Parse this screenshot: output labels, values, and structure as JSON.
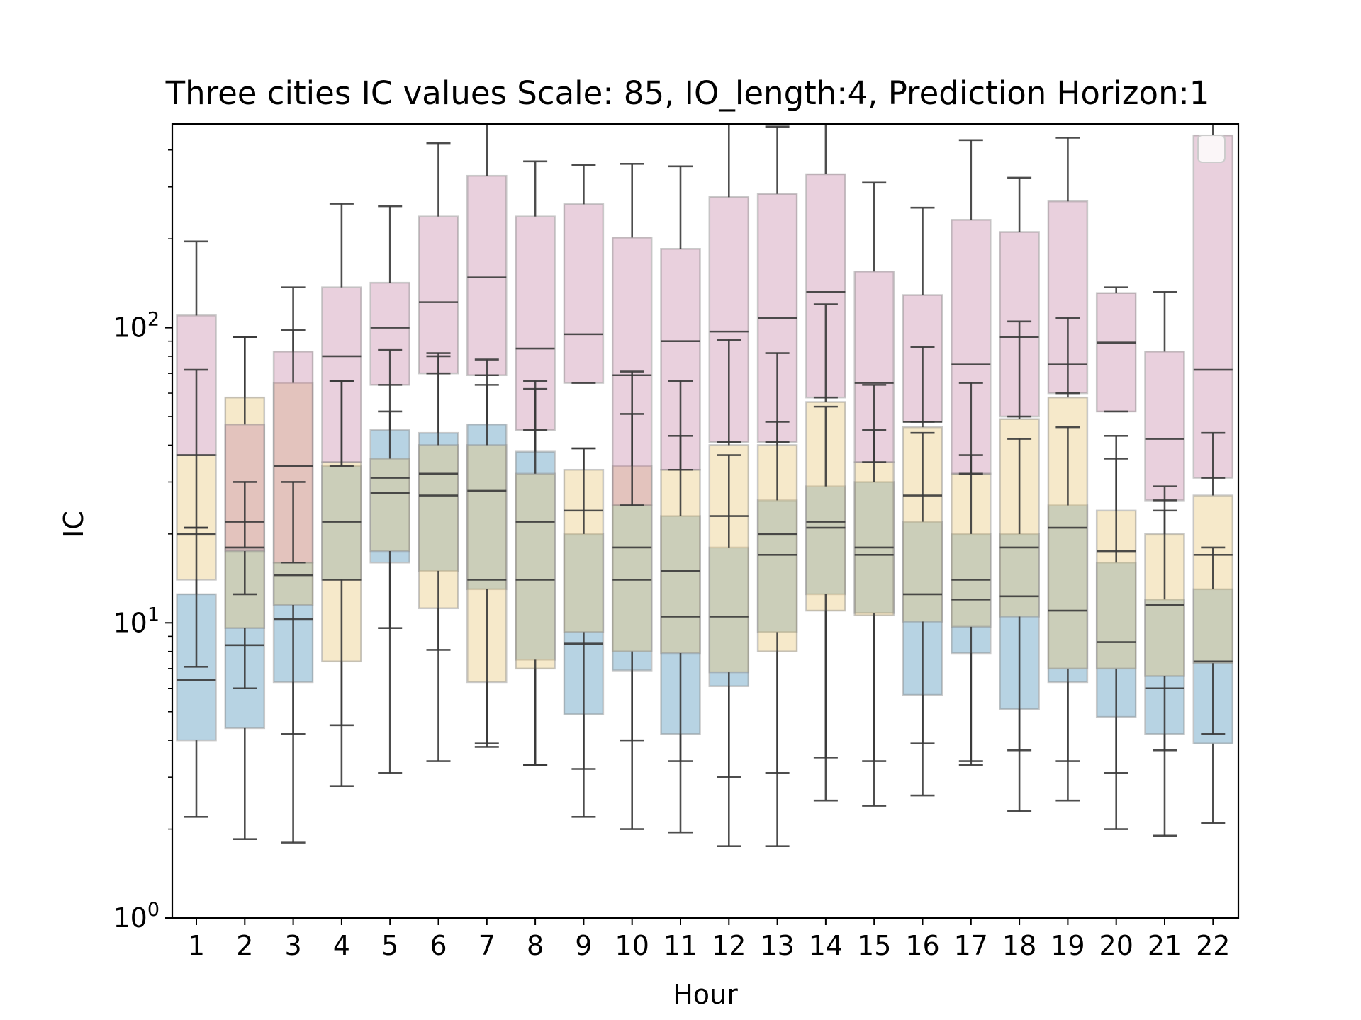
{
  "chart_data": {
    "type": "box",
    "title": "Three cities IC values Scale: 85, IO_length:4, Prediction Horizon:1",
    "xlabel": "Hour",
    "ylabel": "IC",
    "yscale": "log",
    "ylim": [
      1,
      490
    ],
    "categories": [
      "1",
      "2",
      "3",
      "4",
      "5",
      "6",
      "7",
      "8",
      "9",
      "10",
      "11",
      "12",
      "13",
      "14",
      "15",
      "16",
      "17",
      "18",
      "19",
      "20",
      "21",
      "22"
    ],
    "y_ticks": [
      {
        "base": "10",
        "exp": "0",
        "value": 1
      },
      {
        "base": "10",
        "exp": "1",
        "value": 10
      },
      {
        "base": "10",
        "exp": "2",
        "value": 100
      }
    ],
    "legend": {
      "placement": "top-right",
      "entries": []
    },
    "grid": false,
    "series": [
      {
        "color": "#4a90b8",
        "boxes": [
          {
            "wlo": 2.2,
            "q1": 4.0,
            "med": 6.4,
            "q3": 12.5,
            "whi": 21
          },
          {
            "wlo": 1.85,
            "q1": 4.4,
            "med": 8.4,
            "q3": 18,
            "whi": 30
          },
          {
            "wlo": 1.8,
            "q1": 6.3,
            "med": 10.3,
            "q3": 16,
            "whi": 30
          },
          {
            "wlo": 2.8,
            "q1": 14,
            "med": 22,
            "q3": 34,
            "whi": 66
          },
          {
            "wlo": 3.1,
            "q1": 16,
            "med": 27.5,
            "q3": 45,
            "whi": 84
          },
          {
            "wlo": 3.4,
            "q1": 15,
            "med": 27,
            "q3": 44,
            "whi": 80
          },
          {
            "wlo": 3.9,
            "q1": 13,
            "med": 14,
            "q3": 47,
            "whi": 78
          },
          {
            "wlo": 3.3,
            "q1": 7.5,
            "med": 22,
            "q3": 38,
            "whi": 66
          },
          {
            "wlo": 2.2,
            "q1": 4.9,
            "med": 8.5,
            "q3": 20,
            "whi": 39
          },
          {
            "wlo": 2.0,
            "q1": 6.9,
            "med": 18,
            "q3": 25,
            "whi": 71
          },
          {
            "wlo": 1.95,
            "q1": 4.2,
            "med": 10.5,
            "q3": 23,
            "whi": 66
          },
          {
            "wlo": 1.75,
            "q1": 6.1,
            "med": 10.5,
            "q3": 18,
            "whi": 37
          },
          {
            "wlo": 1.75,
            "q1": 9.3,
            "med": 17,
            "q3": 26,
            "whi": 48
          },
          {
            "wlo": 2.5,
            "q1": 12.5,
            "med": 22,
            "q3": 29,
            "whi": 54
          },
          {
            "wlo": 2.4,
            "q1": 10.8,
            "med": 17,
            "q3": 30,
            "whi": 64
          },
          {
            "wlo": 2.6,
            "q1": 5.7,
            "med": 12.5,
            "q3": 22,
            "whi": 44
          },
          {
            "wlo": 3.4,
            "q1": 7.9,
            "med": 12,
            "q3": 20,
            "whi": 65
          },
          {
            "wlo": 2.3,
            "q1": 5.1,
            "med": 12.3,
            "q3": 20,
            "whi": 42
          },
          {
            "wlo": 2.5,
            "q1": 6.3,
            "med": 11,
            "q3": 25,
            "whi": 46
          },
          {
            "wlo": 2.0,
            "q1": 4.8,
            "med": 8.6,
            "q3": 16,
            "whi": 43
          },
          {
            "wlo": 1.9,
            "q1": 4.2,
            "med": 6.0,
            "q3": 12,
            "whi": 24
          },
          {
            "wlo": 2.1,
            "q1": 3.9,
            "med": 7.4,
            "q3": 13,
            "whi": 18
          }
        ]
      },
      {
        "color": "#e8c77a",
        "boxes": [
          {
            "wlo": 7.1,
            "q1": 14,
            "med": 20,
            "q3": 37,
            "whi": 72
          },
          {
            "wlo": 6.0,
            "q1": 9.6,
            "med": 18,
            "q3": 58,
            "whi": 93
          },
          {
            "wlo": 4.2,
            "q1": 11.5,
            "med": 14.5,
            "q3": 65,
            "whi": 98
          },
          {
            "wlo": 4.5,
            "q1": 7.4,
            "med": 14,
            "q3": 35,
            "whi": 66
          },
          {
            "wlo": 9.6,
            "q1": 17.5,
            "med": 31,
            "q3": 36,
            "whi": 52
          },
          {
            "wlo": 8.1,
            "q1": 11.2,
            "med": 32,
            "q3": 40,
            "whi": 82
          },
          {
            "wlo": 3.8,
            "q1": 6.3,
            "med": 28,
            "q3": 40,
            "whi": 64
          },
          {
            "wlo": 3.3,
            "q1": 7.0,
            "med": 14,
            "q3": 32,
            "whi": 62
          },
          {
            "wlo": 3.2,
            "q1": 9.3,
            "med": 24,
            "q3": 33,
            "whi": 39
          },
          {
            "wlo": 4.0,
            "q1": 8.0,
            "med": 14,
            "q3": 34,
            "whi": 51
          },
          {
            "wlo": 3.4,
            "q1": 7.9,
            "med": 15,
            "q3": 33,
            "whi": 43
          },
          {
            "wlo": 3.0,
            "q1": 6.8,
            "med": 23,
            "q3": 40,
            "whi": 91
          },
          {
            "wlo": 3.1,
            "q1": 8.0,
            "med": 20,
            "q3": 40,
            "whi": 82
          },
          {
            "wlo": 3.5,
            "q1": 11,
            "med": 21,
            "q3": 56,
            "whi": 120
          },
          {
            "wlo": 3.4,
            "q1": 10.6,
            "med": 18,
            "q3": 35,
            "whi": 45
          },
          {
            "wlo": 3.9,
            "q1": 10.1,
            "med": 27,
            "q3": 46,
            "whi": 86
          },
          {
            "wlo": 3.3,
            "q1": 9.7,
            "med": 14,
            "q3": 32,
            "whi": 37
          },
          {
            "wlo": 3.7,
            "q1": 10.5,
            "med": 18,
            "q3": 49,
            "whi": 105
          },
          {
            "wlo": 3.4,
            "q1": 7.0,
            "med": 21,
            "q3": 58,
            "whi": 108
          },
          {
            "wlo": 3.1,
            "q1": 7.0,
            "med": 17.5,
            "q3": 24,
            "whi": 36
          },
          {
            "wlo": 3.7,
            "q1": 6.6,
            "med": 11.5,
            "q3": 20,
            "whi": 29
          },
          {
            "wlo": 4.2,
            "q1": 7.3,
            "med": 17,
            "q3": 27,
            "whi": 44
          }
        ]
      },
      {
        "color": "#c98aab",
        "boxes": [
          {
            "wlo": 21,
            "q1": 37,
            "med": 37,
            "q3": 110,
            "whi": 196
          },
          {
            "wlo": 12.5,
            "q1": 17.5,
            "med": 22,
            "q3": 47,
            "whi": 93
          },
          {
            "wlo": 16,
            "q1": 16,
            "med": 34,
            "q3": 83,
            "whi": 137
          },
          {
            "wlo": 34,
            "q1": 35,
            "med": 80,
            "q3": 137,
            "whi": 263
          },
          {
            "wlo": 64,
            "q1": 64,
            "med": 100,
            "q3": 142,
            "whi": 258
          },
          {
            "wlo": 70,
            "q1": 70,
            "med": 122,
            "q3": 238,
            "whi": 422
          },
          {
            "wlo": 69,
            "q1": 69,
            "med": 148,
            "q3": 327,
            "whi": 490
          },
          {
            "wlo": 45,
            "q1": 45,
            "med": 85,
            "q3": 238,
            "whi": 366
          },
          {
            "wlo": 65,
            "q1": 65,
            "med": 95,
            "q3": 262,
            "whi": 355
          },
          {
            "wlo": 25,
            "q1": 25,
            "med": 69,
            "q3": 202,
            "whi": 359
          },
          {
            "wlo": 33,
            "q1": 33,
            "med": 90,
            "q3": 185,
            "whi": 352
          },
          {
            "wlo": 41,
            "q1": 41,
            "med": 97,
            "q3": 277,
            "whi": 490
          },
          {
            "wlo": 41,
            "q1": 41,
            "med": 108,
            "q3": 284,
            "whi": 480
          },
          {
            "wlo": 58,
            "q1": 58,
            "med": 132,
            "q3": 331,
            "whi": 490
          },
          {
            "wlo": 35,
            "q1": 35,
            "med": 65,
            "q3": 155,
            "whi": 310
          },
          {
            "wlo": 48,
            "q1": 48,
            "med": 48,
            "q3": 129,
            "whi": 255
          },
          {
            "wlo": 32,
            "q1": 32,
            "med": 75,
            "q3": 232,
            "whi": 432
          },
          {
            "wlo": 50,
            "q1": 50,
            "med": 93,
            "q3": 211,
            "whi": 322
          },
          {
            "wlo": 60,
            "q1": 60,
            "med": 75,
            "q3": 268,
            "whi": 440
          },
          {
            "wlo": 52,
            "q1": 52,
            "med": 89,
            "q3": 131,
            "whi": 137
          },
          {
            "wlo": 26,
            "q1": 26,
            "med": 42,
            "q3": 83,
            "whi": 132
          },
          {
            "wlo": 31,
            "q1": 31,
            "med": 72,
            "q3": 448,
            "whi": 490
          }
        ]
      }
    ]
  }
}
